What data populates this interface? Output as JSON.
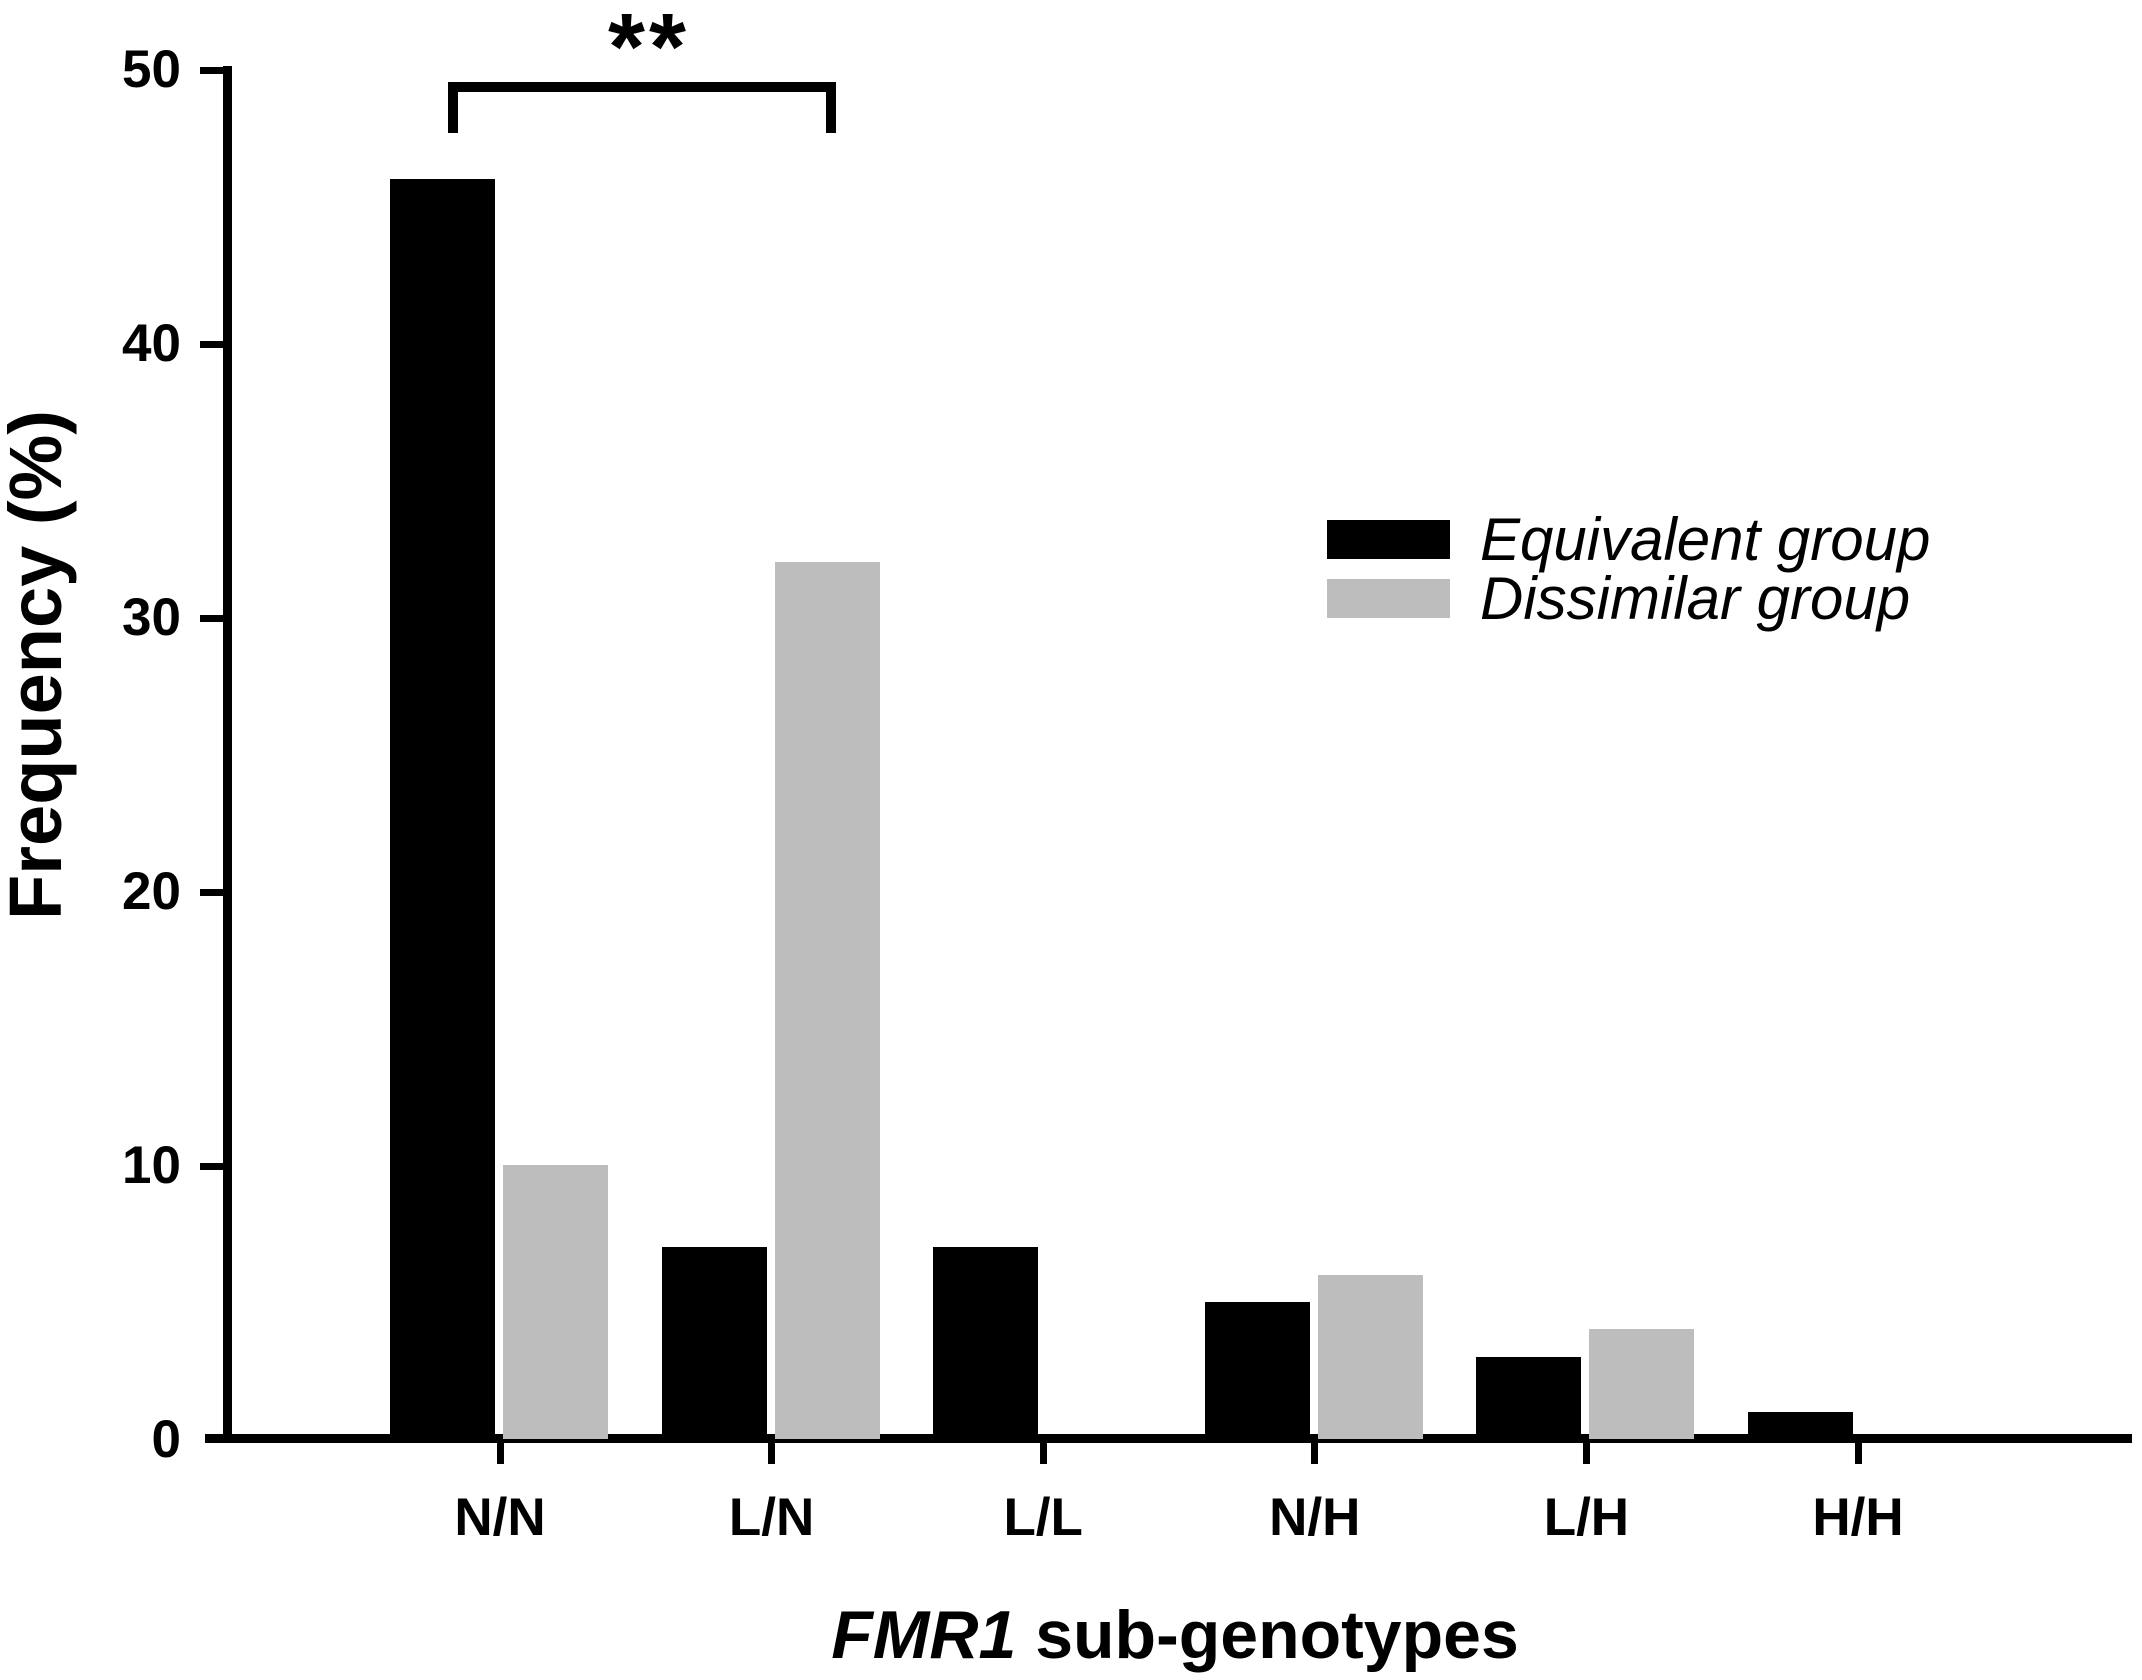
{
  "figure": {
    "xlabel_italic": "FMR1",
    "xlabel_rest": " sub-genotypes"
  },
  "chart_data": {
    "type": "bar",
    "title": "",
    "xlabel": "FMR1 sub-genotypes",
    "ylabel": "Frequency (%)",
    "categories": [
      "N/N",
      "L/N",
      "L/L",
      "N/H",
      "L/H",
      "H/H"
    ],
    "series": [
      {
        "name": "Equivalent group",
        "color": "#000000",
        "values": [
          46,
          7,
          7,
          5,
          3,
          1
        ]
      },
      {
        "name": "Dissimilar group",
        "color": "#bdbdbd",
        "values": [
          10,
          32,
          0,
          6,
          4,
          0
        ]
      }
    ],
    "ylim": [
      0,
      50
    ],
    "yticks": [
      0,
      10,
      20,
      30,
      40,
      50
    ],
    "grid": false,
    "legend_position": "upper-right",
    "annotation": {
      "text": "**",
      "between": [
        "N/N",
        "L/N"
      ],
      "series_from": "Equivalent group",
      "series_to": "Dissimilar group"
    }
  }
}
